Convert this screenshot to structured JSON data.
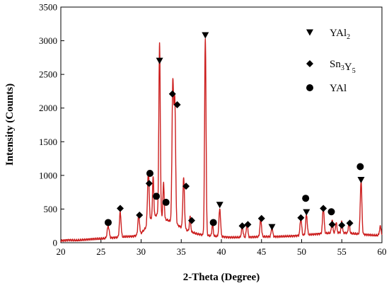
{
  "chart_data": {
    "type": "line",
    "xlabel": "2-Theta (Degree)",
    "ylabel": "Intensity (Counts)",
    "xlim": [
      20,
      60
    ],
    "ylim": [
      0,
      3500
    ],
    "xticks": [
      20,
      25,
      30,
      35,
      40,
      45,
      50,
      55,
      60
    ],
    "yticks": [
      0,
      500,
      1000,
      1500,
      2000,
      2500,
      3000,
      3500
    ],
    "grid": false,
    "legend_position": "top-right",
    "line_color": "#cc1f1f",
    "baseline": [
      [
        20,
        30
      ],
      [
        21,
        40
      ],
      [
        22,
        35
      ],
      [
        23,
        45
      ],
      [
        24,
        55
      ],
      [
        25,
        60
      ],
      [
        26,
        70
      ],
      [
        27,
        80
      ],
      [
        28,
        90
      ],
      [
        29,
        95
      ],
      [
        29.5,
        110
      ],
      [
        30,
        140
      ],
      [
        30.5,
        210
      ],
      [
        31,
        320
      ],
      [
        31.5,
        380
      ],
      [
        32,
        420
      ],
      [
        33,
        350
      ],
      [
        34,
        300
      ],
      [
        35,
        230
      ],
      [
        36,
        170
      ],
      [
        37,
        130
      ],
      [
        38,
        110
      ],
      [
        39,
        100
      ],
      [
        40,
        90
      ],
      [
        41,
        80
      ],
      [
        42,
        80
      ],
      [
        43,
        80
      ],
      [
        44,
        85
      ],
      [
        45,
        90
      ],
      [
        46,
        90
      ],
      [
        47,
        90
      ],
      [
        48,
        95
      ],
      [
        49,
        100
      ],
      [
        50,
        110
      ],
      [
        51,
        120
      ],
      [
        52,
        130
      ],
      [
        53,
        140
      ],
      [
        54,
        150
      ],
      [
        55,
        150
      ],
      [
        56,
        140
      ],
      [
        57,
        130
      ],
      [
        58,
        120
      ],
      [
        59,
        110
      ],
      [
        60,
        110
      ]
    ],
    "peaks": [
      {
        "x": 25.9,
        "y": 180,
        "w": 0.12
      },
      {
        "x": 27.4,
        "y": 370,
        "w": 0.1
      },
      {
        "x": 29.7,
        "y": 300,
        "w": 0.1
      },
      {
        "x": 30.9,
        "y": 780,
        "w": 0.1
      },
      {
        "x": 31.5,
        "y": 600,
        "w": 0.08
      },
      {
        "x": 32.3,
        "y": 2560,
        "w": 0.09
      },
      {
        "x": 32.8,
        "y": 520,
        "w": 0.08
      },
      {
        "x": 33.95,
        "y": 2060,
        "w": 0.1
      },
      {
        "x": 34.2,
        "y": 1800,
        "w": 0.1
      },
      {
        "x": 35.3,
        "y": 750,
        "w": 0.1
      },
      {
        "x": 36.1,
        "y": 220,
        "w": 0.08
      },
      {
        "x": 38.0,
        "y": 2920,
        "w": 0.09
      },
      {
        "x": 38.9,
        "y": 170,
        "w": 0.08
      },
      {
        "x": 39.8,
        "y": 410,
        "w": 0.1
      },
      {
        "x": 42.6,
        "y": 160,
        "w": 0.1
      },
      {
        "x": 43.2,
        "y": 180,
        "w": 0.1
      },
      {
        "x": 44.9,
        "y": 260,
        "w": 0.1
      },
      {
        "x": 46.3,
        "y": 120,
        "w": 0.1
      },
      {
        "x": 49.9,
        "y": 250,
        "w": 0.1
      },
      {
        "x": 50.6,
        "y": 300,
        "w": 0.1
      },
      {
        "x": 52.7,
        "y": 380,
        "w": 0.1
      },
      {
        "x": 53.8,
        "y": 200,
        "w": 0.08
      },
      {
        "x": 54.3,
        "y": 160,
        "w": 0.08
      },
      {
        "x": 55.0,
        "y": 170,
        "w": 0.08
      },
      {
        "x": 55.9,
        "y": 180,
        "w": 0.08
      },
      {
        "x": 57.4,
        "y": 800,
        "w": 0.1
      },
      {
        "x": 59.8,
        "y": 130,
        "w": 0.1
      }
    ],
    "series": [
      {
        "name": "YAl2",
        "marker": "triangle-down",
        "x": [
          32.3,
          38.0,
          39.8,
          46.3,
          50.6,
          57.4
        ],
        "y": [
          2700,
          3080,
          560,
          230,
          450,
          930
        ]
      },
      {
        "name": "Sn3Y5",
        "marker": "diamond",
        "x": [
          27.4,
          29.8,
          31.0,
          33.9,
          34.5,
          35.6,
          36.3,
          42.6,
          43.3,
          45.0,
          49.9,
          52.7,
          53.8,
          55.0,
          56.0
        ],
        "y": [
          510,
          410,
          880,
          2210,
          2050,
          840,
          330,
          250,
          270,
          360,
          370,
          510,
          270,
          260,
          290
        ]
      },
      {
        "name": "YAl",
        "marker": "circle",
        "x": [
          25.9,
          31.1,
          31.9,
          33.1,
          39.0,
          50.5,
          53.7,
          57.3
        ],
        "y": [
          300,
          1030,
          690,
          600,
          300,
          660,
          460,
          1130
        ]
      }
    ],
    "legend": [
      {
        "marker": "triangle-down",
        "label": "YAl",
        "sub": "2",
        "tail": ""
      },
      {
        "marker": "diamond",
        "label": "Sn",
        "sub": "3",
        "tail": "Y",
        "sub2": "5"
      },
      {
        "marker": "circle",
        "label": "YAl",
        "sub": "",
        "tail": ""
      }
    ]
  }
}
